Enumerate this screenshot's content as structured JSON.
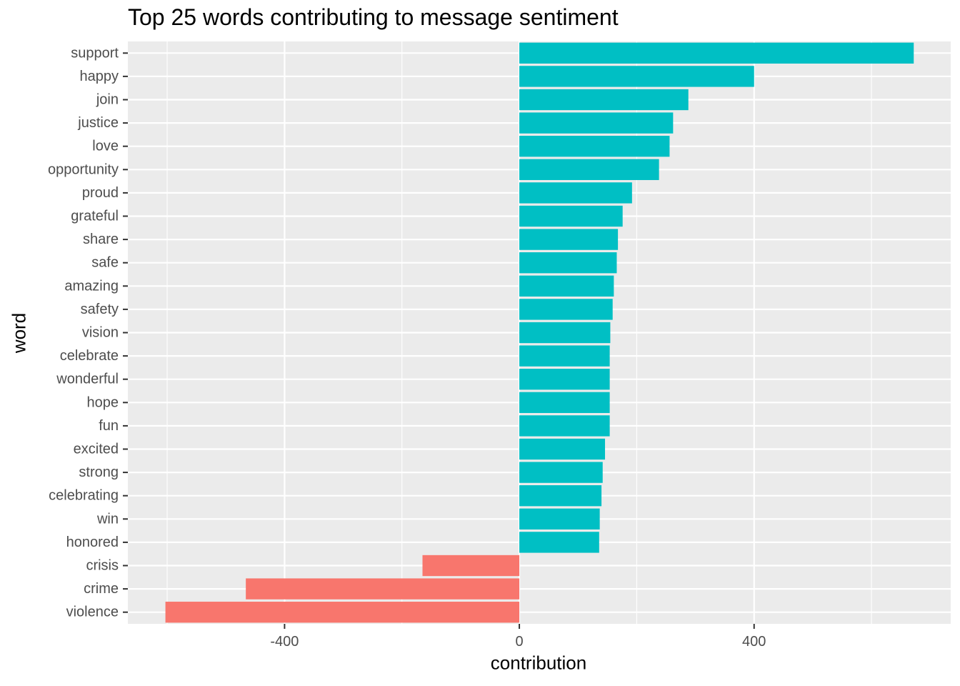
{
  "chart_data": {
    "type": "bar",
    "orientation": "horizontal",
    "title": "Top 25 words contributing to message sentiment",
    "xlabel": "contribution",
    "ylabel": "word",
    "xlim": [
      -667,
      735
    ],
    "xticks": [
      -400,
      0,
      400
    ],
    "xtick_labels": [
      "-400",
      "0",
      "400"
    ],
    "grid": true,
    "colors": {
      "positive": "#00BFC4",
      "negative": "#F8766D",
      "panel": "#EBEBEB",
      "grid": "#FFFFFF"
    },
    "categories": [
      "support",
      "happy",
      "join",
      "justice",
      "love",
      "opportunity",
      "proud",
      "grateful",
      "share",
      "safe",
      "amazing",
      "safety",
      "vision",
      "celebrate",
      "wonderful",
      "hope",
      "fun",
      "excited",
      "strong",
      "celebrating",
      "win",
      "honored",
      "crisis",
      "crime",
      "violence"
    ],
    "values": [
      672,
      400,
      288,
      262,
      256,
      238,
      192,
      176,
      168,
      166,
      161,
      159,
      155,
      154,
      154,
      154,
      154,
      146,
      142,
      140,
      137,
      136,
      -165,
      -466,
      -603
    ]
  }
}
